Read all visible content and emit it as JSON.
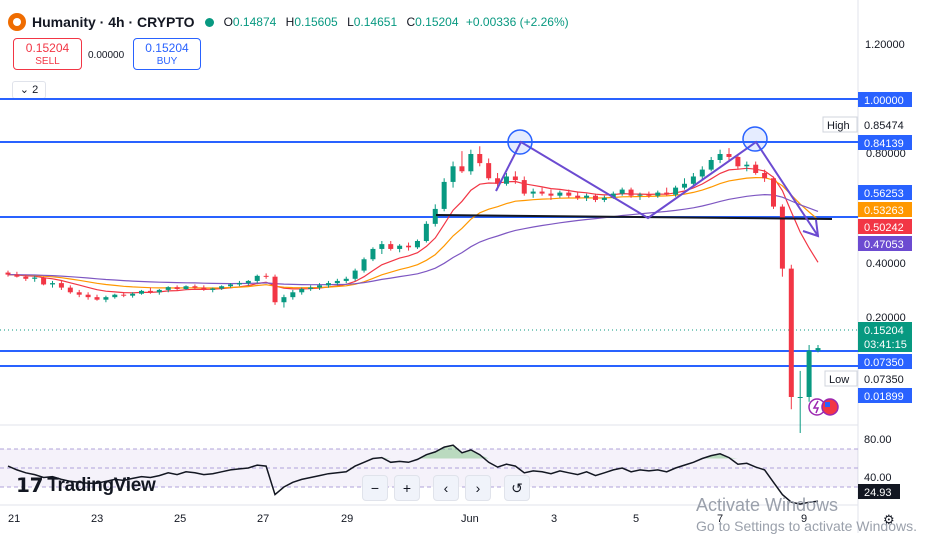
{
  "header": {
    "symbol": "Humanity · 4h · CRYPTO",
    "open_label": "O",
    "open": "0.14874",
    "high_label": "H",
    "high": "0.15605",
    "low_label": "L",
    "low": "0.14651",
    "close_label": "C",
    "close": "0.15204",
    "change": "+0.00336 (+2.26%)"
  },
  "trade": {
    "sell_price": "0.15204",
    "sell_label": "SELL",
    "spread": "0.00000",
    "buy_price": "0.15204",
    "buy_label": "BUY"
  },
  "indicators_toggle": "2",
  "price_axis": {
    "ticks": [
      "1.20000",
      "0.80000",
      "0.40000",
      "0.20000"
    ],
    "high_label": "High",
    "high_value": "0.85474",
    "low_label": "Low",
    "low_value": "0.07350",
    "badges": {
      "level_1": "1.00000",
      "level_2": "0.84139",
      "level_3": "0.56253",
      "ema_slow": "0.53263",
      "ema_fast": "0.50242",
      "ema_long": "0.47053",
      "last_price": "0.15204",
      "countdown": "03:41:15",
      "level_4": "0.07350",
      "level_5": "0.01899"
    }
  },
  "rsi": {
    "ticks": [
      "80.00",
      "40.00"
    ],
    "value": "24.93"
  },
  "time_axis": {
    "labels": [
      "21",
      "23",
      "25",
      "27",
      "29",
      "Jun",
      "3",
      "5",
      "7",
      "9"
    ]
  },
  "branding": "TradingView",
  "navigation": {
    "zoom_out": "−",
    "zoom_in": "+",
    "scroll_left": "‹",
    "scroll_right": "›",
    "reset": "↺"
  },
  "watermark": {
    "line1": "Activate Windows",
    "line2": "Go to Settings to activate Windows."
  },
  "chart_data": {
    "type": "candlestick",
    "price_scale": "log",
    "ylim": [
      0.015,
      1.3
    ],
    "rsi_ylim": [
      0,
      100
    ],
    "horizontal_levels": [
      1.0,
      0.84139,
      0.56253,
      0.0735,
      0.01899
    ],
    "neckline": 0.5625,
    "candles": [
      [
        0.29,
        0.295,
        0.28,
        0.285
      ],
      [
        0.285,
        0.292,
        0.278,
        0.28
      ],
      [
        0.28,
        0.285,
        0.27,
        0.275
      ],
      [
        0.275,
        0.282,
        0.268,
        0.278
      ],
      [
        0.278,
        0.28,
        0.26,
        0.262
      ],
      [
        0.262,
        0.27,
        0.255,
        0.265
      ],
      [
        0.265,
        0.27,
        0.25,
        0.255
      ],
      [
        0.255,
        0.26,
        0.242,
        0.245
      ],
      [
        0.245,
        0.25,
        0.235,
        0.24
      ],
      [
        0.24,
        0.245,
        0.23,
        0.235
      ],
      [
        0.235,
        0.24,
        0.228,
        0.23
      ],
      [
        0.23,
        0.238,
        0.225,
        0.235
      ],
      [
        0.235,
        0.242,
        0.232,
        0.24
      ],
      [
        0.24,
        0.245,
        0.235,
        0.238
      ],
      [
        0.238,
        0.245,
        0.234,
        0.242
      ],
      [
        0.242,
        0.25,
        0.24,
        0.248
      ],
      [
        0.248,
        0.255,
        0.242,
        0.245
      ],
      [
        0.245,
        0.252,
        0.24,
        0.25
      ],
      [
        0.25,
        0.258,
        0.245,
        0.256
      ],
      [
        0.256,
        0.26,
        0.248,
        0.252
      ],
      [
        0.252,
        0.26,
        0.25,
        0.258
      ],
      [
        0.258,
        0.262,
        0.25,
        0.255
      ],
      [
        0.255,
        0.26,
        0.248,
        0.25
      ],
      [
        0.25,
        0.255,
        0.245,
        0.253
      ],
      [
        0.253,
        0.26,
        0.25,
        0.258
      ],
      [
        0.258,
        0.265,
        0.255,
        0.262
      ],
      [
        0.262,
        0.27,
        0.258,
        0.265
      ],
      [
        0.265,
        0.272,
        0.26,
        0.27
      ],
      [
        0.27,
        0.285,
        0.265,
        0.282
      ],
      [
        0.282,
        0.288,
        0.275,
        0.28
      ],
      [
        0.28,
        0.285,
        0.22,
        0.225
      ],
      [
        0.225,
        0.24,
        0.215,
        0.235
      ],
      [
        0.235,
        0.25,
        0.23,
        0.245
      ],
      [
        0.245,
        0.255,
        0.24,
        0.252
      ],
      [
        0.252,
        0.26,
        0.248,
        0.255
      ],
      [
        0.255,
        0.265,
        0.25,
        0.26
      ],
      [
        0.26,
        0.27,
        0.255,
        0.265
      ],
      [
        0.265,
        0.275,
        0.26,
        0.27
      ],
      [
        0.27,
        0.28,
        0.265,
        0.275
      ],
      [
        0.275,
        0.3,
        0.27,
        0.295
      ],
      [
        0.295,
        0.33,
        0.29,
        0.325
      ],
      [
        0.325,
        0.36,
        0.32,
        0.355
      ],
      [
        0.355,
        0.38,
        0.34,
        0.37
      ],
      [
        0.37,
        0.38,
        0.35,
        0.355
      ],
      [
        0.355,
        0.37,
        0.345,
        0.365
      ],
      [
        0.365,
        0.375,
        0.35,
        0.36
      ],
      [
        0.36,
        0.385,
        0.355,
        0.38
      ],
      [
        0.38,
        0.45,
        0.375,
        0.44
      ],
      [
        0.44,
        0.52,
        0.43,
        0.5
      ],
      [
        0.5,
        0.65,
        0.49,
        0.63
      ],
      [
        0.63,
        0.75,
        0.6,
        0.72
      ],
      [
        0.72,
        0.82,
        0.68,
        0.69
      ],
      [
        0.69,
        0.83,
        0.67,
        0.8
      ],
      [
        0.8,
        0.8547,
        0.72,
        0.74
      ],
      [
        0.74,
        0.77,
        0.64,
        0.65
      ],
      [
        0.65,
        0.68,
        0.6,
        0.62
      ],
      [
        0.62,
        0.68,
        0.61,
        0.66
      ],
      [
        0.66,
        0.69,
        0.62,
        0.64
      ],
      [
        0.64,
        0.66,
        0.56,
        0.57
      ],
      [
        0.57,
        0.595,
        0.55,
        0.58
      ],
      [
        0.58,
        0.6,
        0.56,
        0.57
      ],
      [
        0.57,
        0.59,
        0.54,
        0.56
      ],
      [
        0.56,
        0.585,
        0.55,
        0.575
      ],
      [
        0.575,
        0.59,
        0.55,
        0.56
      ],
      [
        0.56,
        0.58,
        0.54,
        0.55
      ],
      [
        0.55,
        0.57,
        0.535,
        0.56
      ],
      [
        0.56,
        0.57,
        0.53,
        0.54
      ],
      [
        0.54,
        0.56,
        0.53,
        0.55
      ],
      [
        0.55,
        0.58,
        0.545,
        0.57
      ],
      [
        0.57,
        0.6,
        0.56,
        0.59
      ],
      [
        0.59,
        0.6,
        0.55,
        0.56
      ],
      [
        0.56,
        0.575,
        0.54,
        0.565
      ],
      [
        0.565,
        0.58,
        0.55,
        0.56
      ],
      [
        0.56,
        0.585,
        0.55,
        0.575
      ],
      [
        0.575,
        0.6,
        0.56,
        0.565
      ],
      [
        0.565,
        0.61,
        0.555,
        0.6
      ],
      [
        0.6,
        0.65,
        0.59,
        0.62
      ],
      [
        0.62,
        0.68,
        0.61,
        0.66
      ],
      [
        0.66,
        0.72,
        0.64,
        0.7
      ],
      [
        0.7,
        0.78,
        0.69,
        0.76
      ],
      [
        0.76,
        0.83,
        0.74,
        0.8
      ],
      [
        0.8,
        0.8414,
        0.76,
        0.78
      ],
      [
        0.78,
        0.8,
        0.7,
        0.72
      ],
      [
        0.72,
        0.75,
        0.69,
        0.73
      ],
      [
        0.73,
        0.75,
        0.67,
        0.68
      ],
      [
        0.68,
        0.7,
        0.63,
        0.65
      ],
      [
        0.65,
        0.66,
        0.5,
        0.51
      ],
      [
        0.51,
        0.52,
        0.28,
        0.3
      ],
      [
        0.3,
        0.31,
        0.09,
        0.1
      ],
      [
        0.1,
        0.125,
        0.0735,
        0.1
      ],
      [
        0.1,
        0.156,
        0.096,
        0.1487
      ],
      [
        0.1487,
        0.156,
        0.1465,
        0.152
      ]
    ],
    "rsi_values": [
      62,
      58,
      55,
      53,
      50,
      51,
      48,
      46,
      45,
      44,
      44,
      46,
      48,
      47,
      49,
      51,
      50,
      52,
      55,
      53,
      56,
      55,
      53,
      54,
      56,
      58,
      59,
      60,
      63,
      62,
      32,
      40,
      45,
      48,
      50,
      52,
      54,
      55,
      56,
      62,
      66,
      70,
      71,
      66,
      67,
      66,
      69,
      74,
      77,
      82,
      84,
      76,
      79,
      74,
      66,
      61,
      64,
      62,
      55,
      57,
      56,
      54,
      57,
      55,
      53,
      56,
      52,
      55,
      58,
      60,
      56,
      58,
      57,
      58,
      56,
      60,
      63,
      66,
      70,
      73,
      75,
      71,
      64,
      65,
      61,
      58,
      45,
      32,
      24,
      22,
      24,
      25
    ]
  }
}
